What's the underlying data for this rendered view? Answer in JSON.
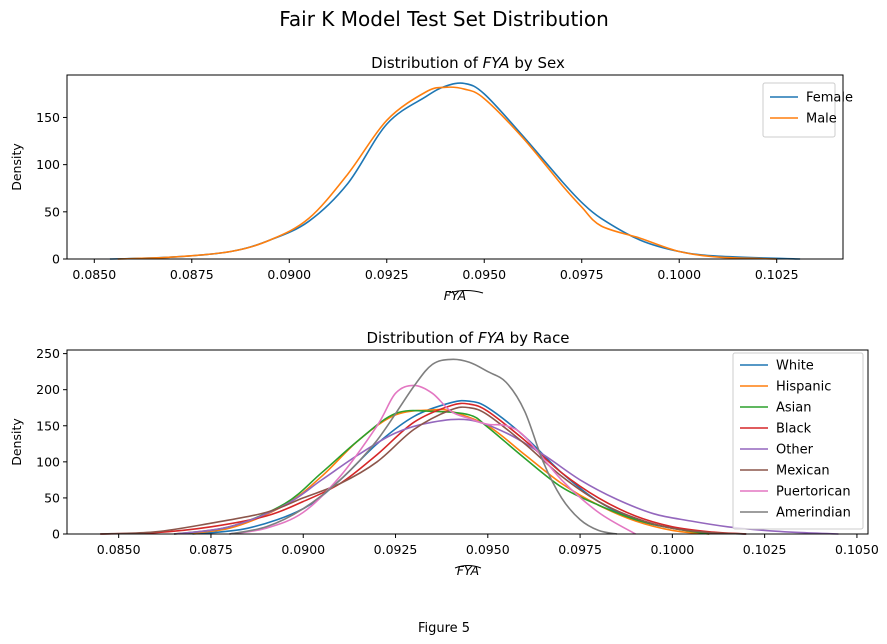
{
  "figure": {
    "suptitle": "Fair K Model Test Set Distribution",
    "caption": "Figure 5"
  },
  "chart_data": [
    {
      "type": "line",
      "title": "Distribution of FYA-hat by Sex",
      "title_prefix": "Distribution of ",
      "title_symbol": "FYA",
      "title_suffix": " by Sex",
      "xlabel": "FYA",
      "ylabel": "Density",
      "xlim": [
        0.0843,
        0.1042
      ],
      "ylim": [
        0,
        195
      ],
      "xticks": [
        0.085,
        0.0875,
        0.09,
        0.0925,
        0.095,
        0.0975,
        0.1,
        0.1025
      ],
      "xtick_labels": [
        "0.0850",
        "0.0875",
        "0.0900",
        "0.0925",
        "0.0950",
        "0.0975",
        "0.1000",
        "0.1025"
      ],
      "yticks": [
        0,
        50,
        100,
        150
      ],
      "ytick_labels": [
        "0",
        "50",
        "100",
        "150"
      ],
      "legend": "top-right",
      "series": [
        {
          "name": "Female",
          "color": "#1f77b4",
          "x": [
            0.0854,
            0.087,
            0.0885,
            0.0895,
            0.0905,
            0.0915,
            0.0925,
            0.0935,
            0.094,
            0.0945,
            0.095,
            0.096,
            0.097,
            0.0975,
            0.098,
            0.099,
            0.1,
            0.101,
            0.1031
          ],
          "y": [
            0,
            2,
            8,
            20,
            40,
            80,
            143,
            172,
            183,
            186,
            175,
            130,
            82,
            60,
            43,
            20,
            8,
            3,
            0
          ]
        },
        {
          "name": "Male",
          "color": "#ff7f0e",
          "x": [
            0.0856,
            0.087,
            0.0885,
            0.0895,
            0.0905,
            0.0915,
            0.0925,
            0.0935,
            0.094,
            0.0945,
            0.095,
            0.096,
            0.097,
            0.0975,
            0.098,
            0.099,
            0.1,
            0.101,
            0.1025
          ],
          "y": [
            0,
            2,
            8,
            20,
            43,
            90,
            147,
            177,
            182,
            180,
            170,
            128,
            78,
            55,
            35,
            22,
            8,
            2,
            0
          ]
        }
      ]
    },
    {
      "type": "line",
      "title": "Distribution of FYA-hat by Race",
      "title_prefix": "Distribution of ",
      "title_symbol": "FYA",
      "title_suffix": " by Race",
      "xlabel": "FYA",
      "ylabel": "Density",
      "xlim": [
        0.0836,
        0.1053
      ],
      "ylim": [
        0,
        255
      ],
      "xticks": [
        0.085,
        0.0875,
        0.09,
        0.0925,
        0.095,
        0.0975,
        0.1,
        0.1025,
        0.105
      ],
      "xtick_labels": [
        "0.0850",
        "0.0875",
        "0.0900",
        "0.0925",
        "0.0950",
        "0.0975",
        "0.1000",
        "0.1025",
        "0.1050"
      ],
      "yticks": [
        0,
        50,
        100,
        150,
        200,
        250
      ],
      "ytick_labels": [
        "0",
        "50",
        "100",
        "150",
        "200",
        "250"
      ],
      "legend": "top-right",
      "series": [
        {
          "name": "White",
          "color": "#1f77b4",
          "x": [
            0.087,
            0.0885,
            0.09,
            0.091,
            0.092,
            0.093,
            0.094,
            0.0945,
            0.095,
            0.096,
            0.097,
            0.098,
            0.099,
            0.1,
            0.101,
            0.102
          ],
          "y": [
            0,
            8,
            35,
            75,
            125,
            163,
            182,
            184,
            175,
            135,
            85,
            45,
            20,
            8,
            2,
            0
          ]
        },
        {
          "name": "Hispanic",
          "color": "#ff7f0e",
          "x": [
            0.0865,
            0.088,
            0.0895,
            0.0905,
            0.0915,
            0.0925,
            0.0935,
            0.094,
            0.095,
            0.096,
            0.097,
            0.098,
            0.099,
            0.1,
            0.101
          ],
          "y": [
            0,
            8,
            40,
            80,
            130,
            165,
            172,
            170,
            150,
            110,
            70,
            40,
            18,
            5,
            0
          ]
        },
        {
          "name": "Asian",
          "color": "#2ca02c",
          "x": [
            0.0865,
            0.088,
            0.0895,
            0.0905,
            0.0915,
            0.0925,
            0.0935,
            0.0945,
            0.095,
            0.096,
            0.097,
            0.098,
            0.099,
            0.1,
            0.101
          ],
          "y": [
            0,
            10,
            42,
            85,
            130,
            167,
            170,
            165,
            148,
            105,
            65,
            40,
            20,
            8,
            0
          ]
        },
        {
          "name": "Black",
          "color": "#d62728",
          "x": [
            0.0845,
            0.086,
            0.0875,
            0.089,
            0.09,
            0.091,
            0.092,
            0.093,
            0.094,
            0.0945,
            0.095,
            0.096,
            0.097,
            0.098,
            0.099,
            0.1,
            0.101,
            0.102
          ],
          "y": [
            0,
            2,
            10,
            25,
            45,
            70,
            110,
            155,
            178,
            180,
            170,
            130,
            85,
            50,
            25,
            10,
            3,
            0
          ]
        },
        {
          "name": "Other",
          "color": "#9467bd",
          "x": [
            0.0865,
            0.088,
            0.0895,
            0.0905,
            0.0915,
            0.0925,
            0.0935,
            0.0945,
            0.0955,
            0.0965,
            0.0975,
            0.0985,
            0.0995,
            0.1005,
            0.1015,
            0.1025,
            0.1035,
            0.1045
          ],
          "y": [
            0,
            10,
            40,
            75,
            110,
            140,
            155,
            158,
            140,
            110,
            75,
            48,
            28,
            18,
            10,
            5,
            2,
            0
          ]
        },
        {
          "name": "Mexican",
          "color": "#8c564b",
          "x": [
            0.0845,
            0.086,
            0.0875,
            0.089,
            0.09,
            0.091,
            0.092,
            0.093,
            0.094,
            0.0945,
            0.095,
            0.096,
            0.097,
            0.098,
            0.099,
            0.1,
            0.101,
            0.102
          ],
          "y": [
            0,
            3,
            15,
            30,
            50,
            70,
            100,
            145,
            172,
            175,
            165,
            125,
            80,
            45,
            22,
            8,
            2,
            0
          ]
        },
        {
          "name": "Puertorican",
          "color": "#e377c2",
          "x": [
            0.088,
            0.089,
            0.09,
            0.091,
            0.092,
            0.0925,
            0.093,
            0.0935,
            0.094,
            0.0945,
            0.095,
            0.0955,
            0.096,
            0.097,
            0.098,
            0.099
          ],
          "y": [
            0,
            8,
            30,
            80,
            150,
            195,
            206,
            195,
            170,
            160,
            152,
            150,
            135,
            75,
            30,
            0
          ]
        },
        {
          "name": "Amerindian",
          "color": "#7f7f7f",
          "x": [
            0.088,
            0.089,
            0.09,
            0.091,
            0.092,
            0.093,
            0.0935,
            0.094,
            0.0945,
            0.095,
            0.0955,
            0.096,
            0.0965,
            0.097,
            0.0975,
            0.098,
            0.0985
          ],
          "y": [
            0,
            10,
            35,
            75,
            130,
            205,
            235,
            242,
            238,
            225,
            210,
            170,
            100,
            50,
            20,
            5,
            0
          ]
        }
      ]
    }
  ]
}
